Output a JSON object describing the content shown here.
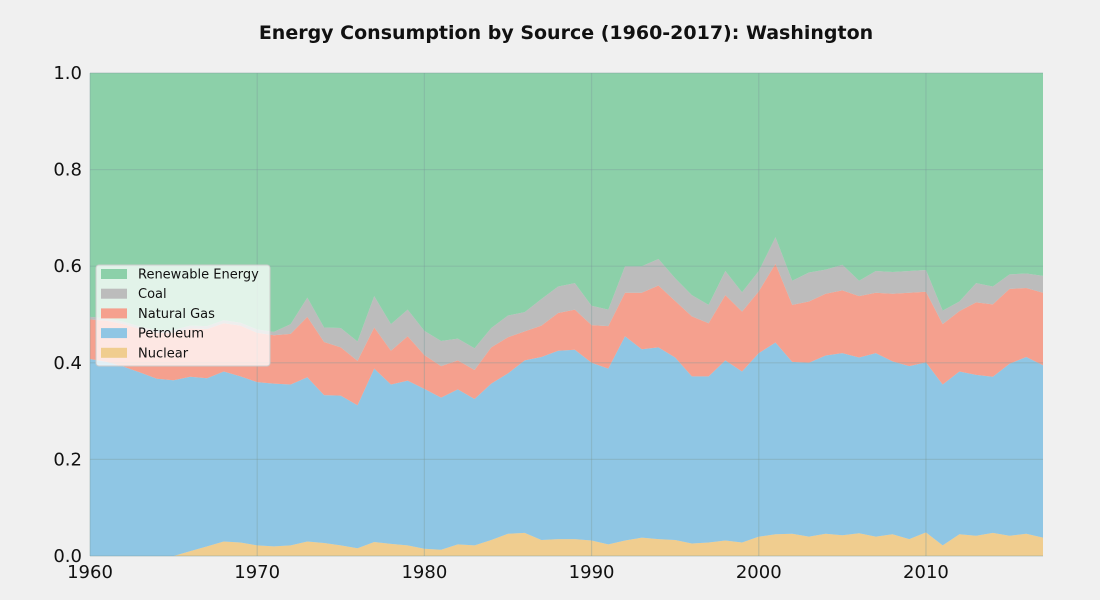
{
  "chart_data": {
    "type": "area",
    "stacked": true,
    "normalized": true,
    "title": "Energy Consumption by Source (1960-2017): Washington",
    "xlabel": "",
    "ylabel": "",
    "xlim": [
      1960,
      2017
    ],
    "ylim": [
      0,
      1
    ],
    "x_ticks": [
      1960,
      1970,
      1980,
      1990,
      2000,
      2010
    ],
    "x_tick_labels": [
      "1960",
      "1970",
      "1980",
      "1990",
      "2000",
      "2010"
    ],
    "y_ticks": [
      0,
      0.2,
      0.4,
      0.6,
      0.8,
      1.0
    ],
    "y_tick_labels": [
      "0.0",
      "0.2",
      "0.4",
      "0.6",
      "0.8",
      "1.0"
    ],
    "grid": true,
    "legend_position": "center-left",
    "x": [
      1960,
      1961,
      1962,
      1963,
      1964,
      1965,
      1966,
      1967,
      1968,
      1969,
      1970,
      1971,
      1972,
      1973,
      1974,
      1975,
      1976,
      1977,
      1978,
      1979,
      1980,
      1981,
      1982,
      1983,
      1984,
      1985,
      1986,
      1987,
      1988,
      1989,
      1990,
      1991,
      1992,
      1993,
      1994,
      1995,
      1996,
      1997,
      1998,
      1999,
      2000,
      2001,
      2002,
      2003,
      2004,
      2005,
      2006,
      2007,
      2008,
      2009,
      2010,
      2011,
      2012,
      2013,
      2014,
      2015,
      2016,
      2017
    ],
    "series": [
      {
        "name": "Nuclear",
        "color": "#f0cd8f",
        "values": [
          0,
          0,
          0,
          0,
          0,
          0,
          0.01,
          0.02,
          0.03,
          0.028,
          0.022,
          0.02,
          0.022,
          0.03,
          0.027,
          0.022,
          0.016,
          0.029,
          0.025,
          0.022,
          0.015,
          0.013,
          0.024,
          0.022,
          0.033,
          0.046,
          0.048,
          0.033,
          0.035,
          0.035,
          0.032,
          0.024,
          0.032,
          0.038,
          0.035,
          0.033,
          0.026,
          0.028,
          0.032,
          0.028,
          0.04,
          0.045,
          0.046,
          0.04,
          0.046,
          0.043,
          0.047,
          0.04,
          0.045,
          0.035,
          0.049,
          0.022,
          0.045,
          0.042,
          0.048,
          0.042,
          0.046,
          0.038
        ]
      },
      {
        "name": "Petroleum",
        "color": "#8fc6e4",
        "values": [
          0.408,
          0.402,
          0.392,
          0.38,
          0.367,
          0.364,
          0.361,
          0.348,
          0.352,
          0.344,
          0.338,
          0.337,
          0.333,
          0.34,
          0.306,
          0.31,
          0.296,
          0.359,
          0.33,
          0.341,
          0.331,
          0.315,
          0.321,
          0.303,
          0.324,
          0.332,
          0.357,
          0.379,
          0.39,
          0.392,
          0.368,
          0.364,
          0.423,
          0.39,
          0.397,
          0.378,
          0.346,
          0.344,
          0.373,
          0.354,
          0.38,
          0.397,
          0.356,
          0.36,
          0.369,
          0.377,
          0.364,
          0.38,
          0.358,
          0.358,
          0.352,
          0.333,
          0.337,
          0.333,
          0.323,
          0.356,
          0.366,
          0.357
        ]
      },
      {
        "name": "Natural Gas",
        "color": "#f5a08e",
        "values": [
          0.082,
          0.085,
          0.088,
          0.09,
          0.095,
          0.098,
          0.1,
          0.102,
          0.1,
          0.105,
          0.102,
          0.1,
          0.105,
          0.125,
          0.11,
          0.1,
          0.092,
          0.085,
          0.07,
          0.092,
          0.07,
          0.065,
          0.06,
          0.06,
          0.075,
          0.075,
          0.06,
          0.065,
          0.078,
          0.083,
          0.078,
          0.088,
          0.09,
          0.117,
          0.128,
          0.117,
          0.124,
          0.11,
          0.135,
          0.124,
          0.128,
          0.163,
          0.118,
          0.127,
          0.128,
          0.13,
          0.127,
          0.125,
          0.14,
          0.152,
          0.146,
          0.125,
          0.125,
          0.15,
          0.15,
          0.155,
          0.143,
          0.15
        ]
      },
      {
        "name": "Coal",
        "color": "#bcbcbc",
        "values": [
          0.005,
          0.005,
          0.005,
          0.005,
          0.005,
          0.006,
          0.006,
          0.006,
          0.006,
          0.006,
          0.007,
          0.007,
          0.02,
          0.04,
          0.03,
          0.04,
          0.04,
          0.065,
          0.055,
          0.055,
          0.05,
          0.052,
          0.045,
          0.045,
          0.04,
          0.045,
          0.04,
          0.055,
          0.055,
          0.055,
          0.04,
          0.034,
          0.055,
          0.055,
          0.055,
          0.047,
          0.044,
          0.038,
          0.05,
          0.04,
          0.042,
          0.055,
          0.05,
          0.06,
          0.05,
          0.053,
          0.032,
          0.045,
          0.045,
          0.045,
          0.045,
          0.028,
          0.02,
          0.04,
          0.037,
          0.03,
          0.03,
          0.035
        ]
      },
      {
        "name": "Renewable Energy",
        "color": "#8cd0a9",
        "values": [
          0.505,
          0.508,
          0.515,
          0.525,
          0.533,
          0.532,
          0.523,
          0.524,
          0.512,
          0.517,
          0.531,
          0.536,
          0.52,
          0.465,
          0.527,
          0.528,
          0.556,
          0.462,
          0.52,
          0.49,
          0.534,
          0.555,
          0.55,
          0.57,
          0.528,
          0.502,
          0.495,
          0.468,
          0.442,
          0.435,
          0.482,
          0.49,
          0.4,
          0.4,
          0.385,
          0.425,
          0.46,
          0.48,
          0.41,
          0.454,
          0.41,
          0.34,
          0.43,
          0.413,
          0.407,
          0.397,
          0.43,
          0.41,
          0.412,
          0.41,
          0.408,
          0.492,
          0.473,
          0.435,
          0.442,
          0.417,
          0.415,
          0.42
        ]
      }
    ]
  }
}
